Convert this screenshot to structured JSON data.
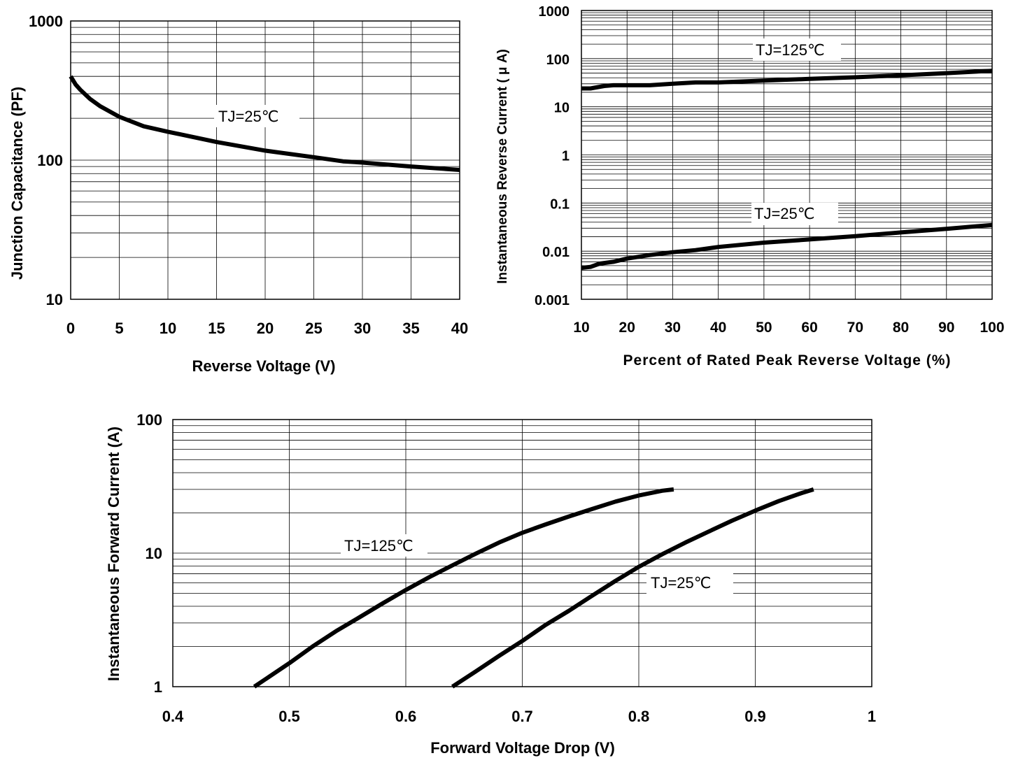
{
  "chart_data": [
    {
      "type": "line",
      "xlabel": "Reverse Voltage (V)",
      "ylabel": "Junction Capacitance (PF)",
      "xlim": [
        0,
        40
      ],
      "ylim": [
        10,
        1000
      ],
      "yscale": "log",
      "grid": true,
      "xticks": [
        "0",
        "5",
        "10",
        "15",
        "20",
        "25",
        "30",
        "35",
        "40"
      ],
      "yticks": [
        "10",
        "100",
        "1000"
      ],
      "series": [
        {
          "name": "TJ=25℃",
          "x": [
            0,
            0.5,
            1,
            2,
            3,
            5,
            7.5,
            10,
            15,
            20,
            25,
            28,
            30,
            35,
            40
          ],
          "y": [
            400,
            350,
            320,
            275,
            245,
            205,
            175,
            160,
            135,
            117,
            105,
            98,
            96,
            90,
            85
          ]
        }
      ],
      "annotations": [
        "TJ=25℃"
      ]
    },
    {
      "type": "line",
      "xlabel": "Percent of Rated Peak Reverse Voltage (%)",
      "ylabel": "Instantaneous Reverse Current (    μ A)",
      "xlim": [
        10,
        100
      ],
      "ylim": [
        0.001,
        1000
      ],
      "yscale": "log",
      "grid": true,
      "xticks": [
        "10",
        "20",
        "30",
        "40",
        "50",
        "60",
        "70",
        "80",
        "90",
        "100"
      ],
      "yticks": [
        "0.001",
        "0.01",
        "0.1",
        "1",
        "10",
        "100",
        "1000"
      ],
      "series": [
        {
          "name": "TJ=125℃",
          "x": [
            10,
            12,
            15,
            17,
            20,
            25,
            30,
            35,
            40,
            50,
            60,
            70,
            80,
            90,
            100
          ],
          "y": [
            24,
            24,
            27,
            28,
            28,
            28,
            30,
            32,
            32,
            35,
            38,
            41,
            45,
            50,
            56
          ]
        },
        {
          "name": "TJ=25℃",
          "x": [
            10,
            12,
            14,
            17,
            20,
            25,
            30,
            35,
            40,
            50,
            60,
            70,
            80,
            90,
            100
          ],
          "y": [
            0.0045,
            0.0047,
            0.0055,
            0.006,
            0.007,
            0.0083,
            0.0095,
            0.0105,
            0.0122,
            0.015,
            0.0175,
            0.0205,
            0.0245,
            0.029,
            0.035
          ]
        }
      ],
      "annotations": [
        "TJ=125℃",
        "TJ=25℃"
      ]
    },
    {
      "type": "line",
      "xlabel": "Forward Voltage Drop (V)",
      "ylabel": "Instantaneous Forward Current (A)",
      "xlim": [
        0.4,
        1
      ],
      "ylim": [
        1,
        100
      ],
      "yscale": "log",
      "grid": true,
      "xticks": [
        "0.4",
        "0.5",
        "0.6",
        "0.7",
        "0.8",
        "0.9",
        "1"
      ],
      "yticks": [
        "1",
        "10",
        "100"
      ],
      "series": [
        {
          "name": "TJ=125℃",
          "x": [
            0.47,
            0.5,
            0.52,
            0.54,
            0.56,
            0.58,
            0.6,
            0.62,
            0.64,
            0.66,
            0.68,
            0.7,
            0.72,
            0.74,
            0.76,
            0.78,
            0.8,
            0.82,
            0.83
          ],
          "y": [
            1,
            1.5,
            2,
            2.6,
            3.3,
            4.2,
            5.3,
            6.6,
            8.1,
            9.9,
            12,
            14.2,
            16.4,
            18.8,
            21.4,
            24.3,
            27,
            29.3,
            30
          ]
        },
        {
          "name": "TJ=25℃",
          "x": [
            0.64,
            0.66,
            0.68,
            0.7,
            0.72,
            0.74,
            0.76,
            0.78,
            0.8,
            0.82,
            0.84,
            0.86,
            0.88,
            0.9,
            0.92,
            0.94,
            0.95
          ],
          "y": [
            1,
            1.3,
            1.7,
            2.2,
            2.9,
            3.7,
            4.8,
            6.2,
            7.9,
            9.8,
            12,
            14.5,
            17.5,
            20.8,
            24.5,
            28.2,
            30
          ]
        }
      ],
      "annotations": [
        "TJ=125℃",
        "TJ=25℃"
      ]
    }
  ]
}
